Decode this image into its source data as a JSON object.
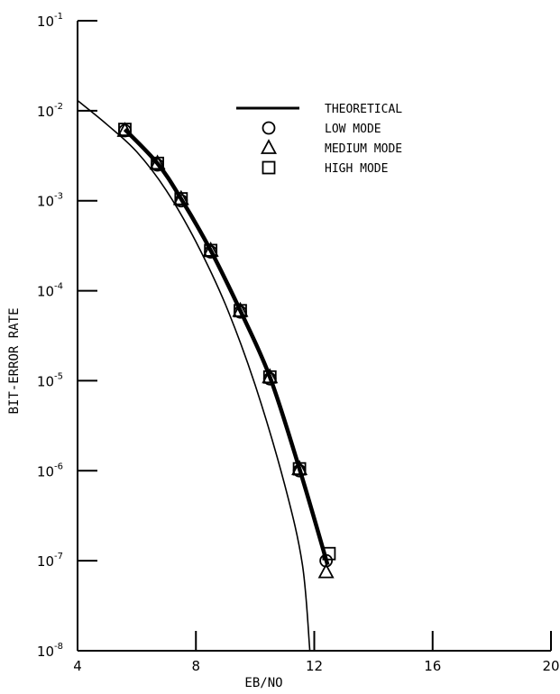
{
  "chart_data": {
    "type": "line",
    "title": "",
    "xlabel": "EB/NO",
    "ylabel": "BIT-ERROR RATE",
    "xlim": [
      4,
      20
    ],
    "ylim_log10": [
      -8,
      -1
    ],
    "y_scale": "log",
    "x_ticks": [
      "4",
      "8",
      "12",
      "16",
      "20"
    ],
    "y_ticks": [
      {
        "base": "10",
        "exp": "-1"
      },
      {
        "base": "10",
        "exp": "-2"
      },
      {
        "base": "10",
        "exp": "-3"
      },
      {
        "base": "10",
        "exp": "-4"
      },
      {
        "base": "10",
        "exp": "-5"
      },
      {
        "base": "10",
        "exp": "-6"
      },
      {
        "base": "10",
        "exp": "-7"
      },
      {
        "base": "10",
        "exp": "-8"
      }
    ],
    "grid": false,
    "legend_position": "top-right",
    "series": [
      {
        "name": "THEORETICAL",
        "marker": "none",
        "style": "thin-line",
        "points": [
          [
            4.0,
            0.013
          ],
          [
            5.0,
            0.007
          ],
          [
            6.0,
            0.0035
          ],
          [
            7.0,
            0.0013
          ],
          [
            8.0,
            0.00035
          ],
          [
            9.0,
            7e-05
          ],
          [
            10.0,
            9e-06
          ],
          [
            11.0,
            7e-07
          ],
          [
            11.6,
            9e-08
          ],
          [
            11.85,
            1e-08
          ]
        ]
      },
      {
        "name": "LOW MODE",
        "marker": "circle",
        "points": [
          [
            5.6,
            0.006
          ],
          [
            6.7,
            0.0025
          ],
          [
            7.5,
            0.001
          ],
          [
            8.5,
            0.00027
          ],
          [
            9.5,
            5.8e-05
          ],
          [
            10.5,
            1.05e-05
          ],
          [
            11.5,
            1e-06
          ],
          [
            12.4,
            1e-07
          ]
        ]
      },
      {
        "name": "MEDIUM MODE",
        "marker": "triangle",
        "points": [
          [
            5.6,
            0.006
          ],
          [
            6.7,
            0.0026
          ],
          [
            7.5,
            0.00105
          ],
          [
            8.5,
            0.00028
          ],
          [
            9.5,
            6e-05
          ],
          [
            10.5,
            1.1e-05
          ],
          [
            11.5,
            1.05e-06
          ],
          [
            12.4,
            7.5e-08
          ]
        ]
      },
      {
        "name": "HIGH MODE",
        "marker": "square",
        "points": [
          [
            5.6,
            0.0062
          ],
          [
            6.7,
            0.0026
          ],
          [
            7.5,
            0.00105
          ],
          [
            8.5,
            0.00028
          ],
          [
            9.5,
            6e-05
          ],
          [
            10.5,
            1.1e-05
          ],
          [
            11.5,
            1.05e-06
          ],
          [
            12.5,
            1.2e-07
          ]
        ]
      }
    ],
    "fit_curve": [
      [
        5.6,
        0.0062
      ],
      [
        6.7,
        0.0026
      ],
      [
        7.5,
        0.00105
      ],
      [
        8.5,
        0.00028
      ],
      [
        9.5,
        6e-05
      ],
      [
        10.5,
        1.1e-05
      ],
      [
        11.5,
        1.05e-06
      ],
      [
        12.45,
        9e-08
      ]
    ]
  }
}
